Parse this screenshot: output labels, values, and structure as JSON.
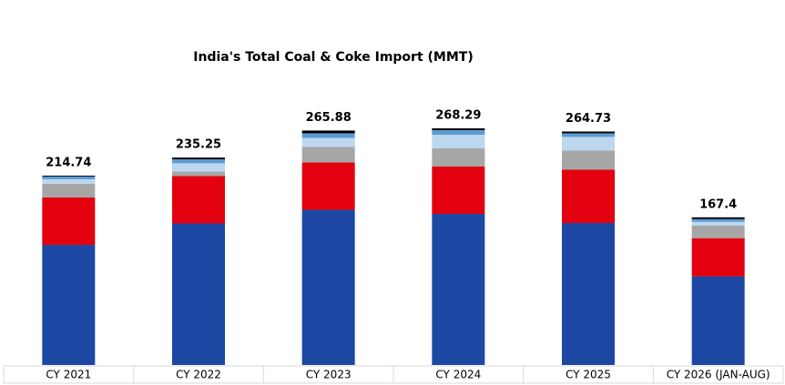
{
  "chart_data": {
    "type": "stacked-bar",
    "title": "India's Total Coal & Coke Import (MMT)",
    "categories": [
      "CY 2021",
      "CY 2022",
      "CY 2023",
      "CY 2024",
      "CY 2025",
      "CY 2026 (JAN-AUG)"
    ],
    "series": [
      {
        "color": "#1c48a3",
        "values": [
          136.2,
          160.5,
          176.0,
          171.3,
          161.0,
          100.5
        ]
      },
      {
        "color": "#e3000f",
        "values": [
          53.7,
          53.7,
          53.7,
          53.7,
          60.4,
          43.3
        ]
      },
      {
        "color": "#a6a6a6",
        "values": [
          15.5,
          5.2,
          17.5,
          20.6,
          21.7,
          14.4
        ]
      },
      {
        "color": "#bdd7ee",
        "values": [
          5.2,
          9.3,
          10.3,
          15.5,
          15.5,
          4.1
        ]
      },
      {
        "color": "#5b9bd5",
        "values": [
          3.1,
          4.5,
          5.2,
          5.2,
          4.1,
          3.1
        ]
      },
      {
        "color": "#000000",
        "values": [
          1.0,
          2.0,
          3.1,
          2.0,
          2.0,
          2.0
        ]
      }
    ],
    "totals": [
      214.74,
      235.25,
      265.88,
      268.29,
      264.73,
      167.4
    ],
    "ylim": [
      0,
      290
    ]
  }
}
